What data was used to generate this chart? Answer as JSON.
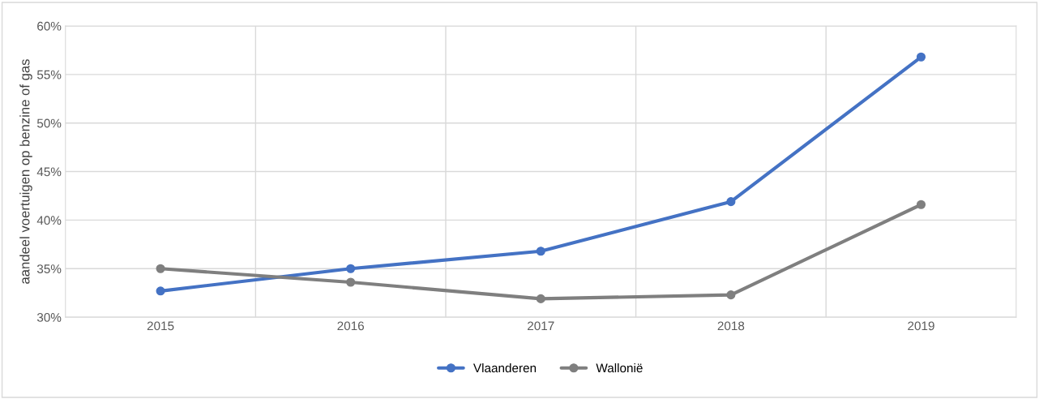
{
  "chart_data": {
    "type": "line",
    "ylabel": "aandeel voertuigen op benzine of gas",
    "categories": [
      "2015",
      "2016",
      "2017",
      "2018",
      "2019"
    ],
    "series": [
      {
        "name": "Vlaanderen",
        "color": "#4472c4",
        "values": [
          32.7,
          35.0,
          36.8,
          41.9,
          56.8
        ]
      },
      {
        "name": "Wallonië",
        "color": "#7f7f7f",
        "values": [
          35.0,
          33.6,
          31.9,
          32.3,
          41.6
        ]
      }
    ],
    "ylim": [
      30,
      60
    ],
    "yticks": [
      {
        "value": 30,
        "label": "30%"
      },
      {
        "value": 35,
        "label": "35%"
      },
      {
        "value": 40,
        "label": "40%"
      },
      {
        "value": 45,
        "label": "45%"
      },
      {
        "value": 50,
        "label": "50%"
      },
      {
        "value": 55,
        "label": "55%"
      },
      {
        "value": 60,
        "label": "60%"
      }
    ],
    "grid": true,
    "legend": "bottom",
    "marker": "circle",
    "line_style": "solid"
  }
}
